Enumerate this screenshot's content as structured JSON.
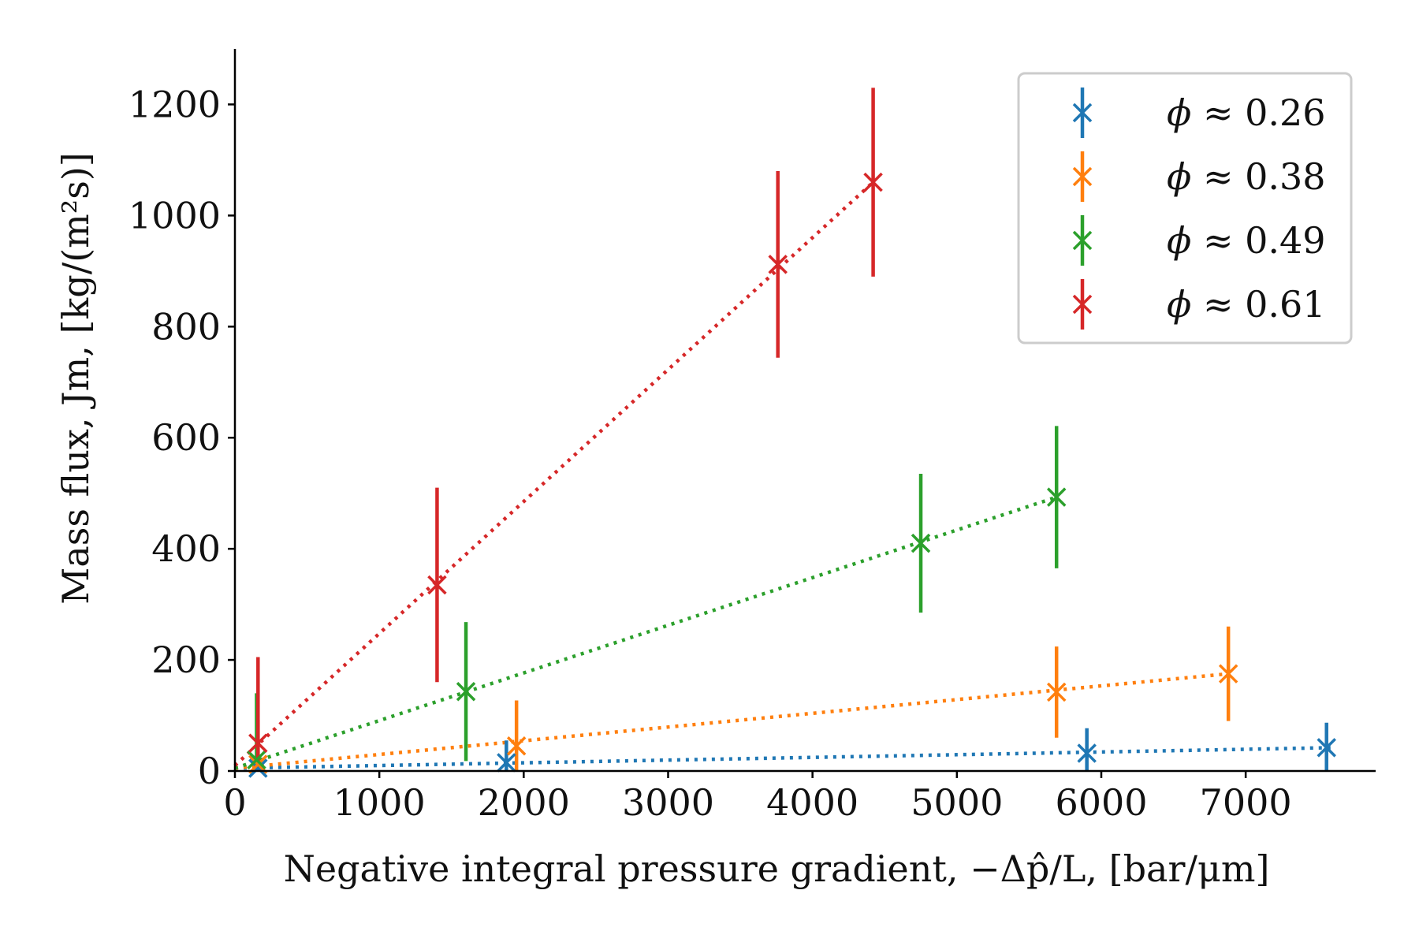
{
  "chart_data": {
    "type": "scatter",
    "title": "",
    "xlabel": "Negative integral pressure gradient, −Δp̂/L, [bar/μm]",
    "ylabel": "Mass flux, Jm, [kg/(m²s)]",
    "xlim": [
      0,
      7900
    ],
    "ylim": [
      0,
      1300
    ],
    "x_ticks": [
      0,
      1000,
      2000,
      3000,
      4000,
      5000,
      6000,
      7000
    ],
    "y_ticks": [
      0,
      200,
      400,
      600,
      800,
      1000,
      1200
    ],
    "x_tick_labels": [
      "0",
      "1000",
      "2000",
      "3000",
      "4000",
      "5000",
      "6000",
      "7000"
    ],
    "y_tick_labels": [
      "0",
      "200",
      "400",
      "600",
      "800",
      "1000",
      "1200"
    ],
    "grid": false,
    "legend_position": "top-right",
    "series": [
      {
        "name": "ϕ ≈ 0.26",
        "legend_symbol": "ϕ",
        "legend_rest": " ≈ 0.26",
        "color": "#1f77b4",
        "x": [
          160,
          1880,
          5900,
          7560
        ],
        "y": [
          5,
          15,
          32,
          42
        ],
        "yerr": [
          18,
          40,
          45,
          45
        ],
        "fit": [
          [
            0,
            5
          ],
          [
            7600,
            42
          ]
        ]
      },
      {
        "name": "ϕ ≈ 0.38",
        "legend_symbol": "ϕ",
        "legend_rest": " ≈ 0.38",
        "color": "#ff7f0e",
        "x": [
          160,
          1950,
          5690,
          6880
        ],
        "y": [
          12,
          45,
          142,
          175
        ],
        "yerr": [
          80,
          82,
          82,
          85
        ],
        "fit": [
          [
            0,
            5
          ],
          [
            6880,
            175
          ]
        ]
      },
      {
        "name": "ϕ ≈ 0.49",
        "legend_symbol": "ϕ",
        "legend_rest": " ≈ 0.49",
        "color": "#2ca02c",
        "x": [
          150,
          1600,
          4750,
          5690
        ],
        "y": [
          20,
          143,
          410,
          493
        ],
        "yerr": [
          120,
          125,
          125,
          128
        ],
        "fit": [
          [
            0,
            5
          ],
          [
            5690,
            493
          ]
        ]
      },
      {
        "name": "ϕ ≈ 0.61",
        "legend_symbol": "ϕ",
        "legend_rest": " ≈ 0.61",
        "color": "#d62728",
        "x": [
          160,
          1400,
          3760,
          4420
        ],
        "y": [
          50,
          335,
          912,
          1060
        ],
        "yerr": [
          155,
          175,
          168,
          170
        ],
        "fit": [
          [
            0,
            10
          ],
          [
            4420,
            1060
          ]
        ]
      }
    ]
  }
}
